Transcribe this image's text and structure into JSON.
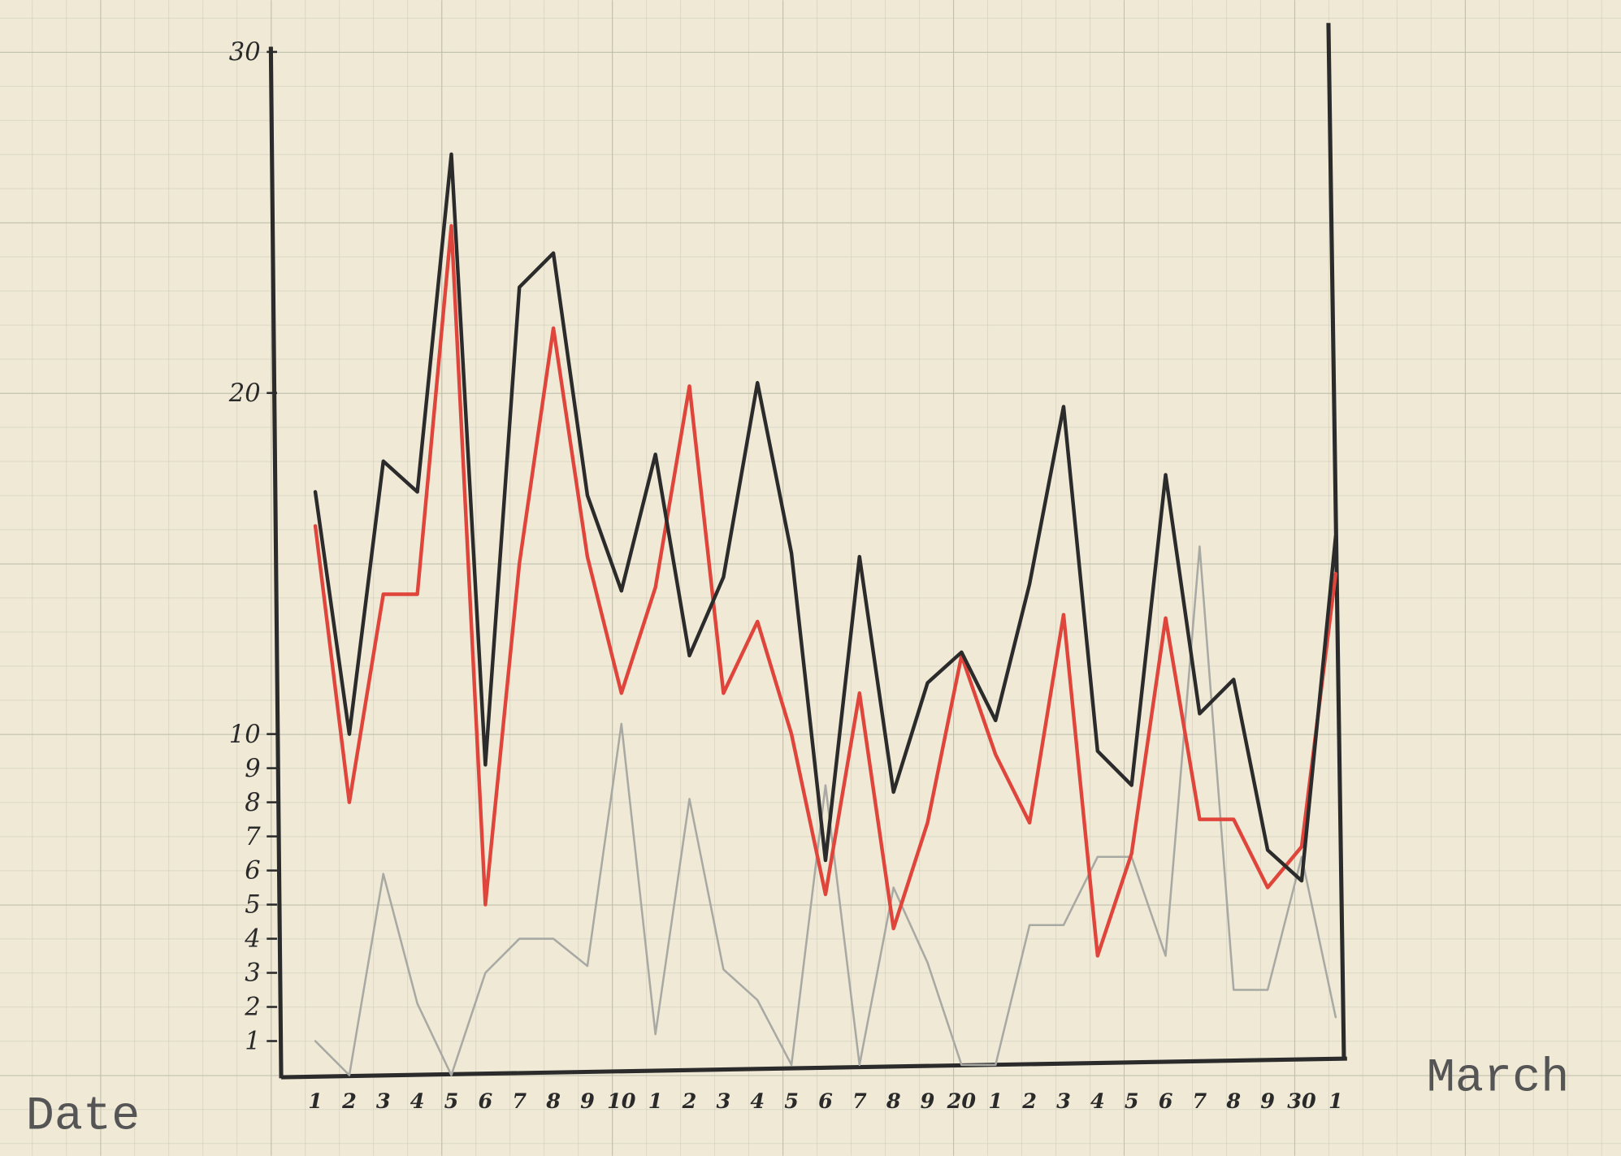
{
  "chart_data": {
    "type": "line",
    "x_label": "Date",
    "x_label_right": "March",
    "categories": [
      "1",
      "2",
      "3",
      "4",
      "5",
      "6",
      "7",
      "8",
      "9",
      "10",
      "1",
      "2",
      "3",
      "4",
      "5",
      "6",
      "7",
      "8",
      "9",
      "20",
      "1",
      "2",
      "3",
      "4",
      "5",
      "6",
      "7",
      "8",
      "9",
      "30",
      "1"
    ],
    "ylim": [
      0,
      30
    ],
    "yticks": [
      1,
      2,
      3,
      4,
      5,
      6,
      7,
      8,
      9,
      10,
      20,
      30
    ],
    "grid": true,
    "series": [
      {
        "color": "#2b2b2b",
        "values": [
          17.1,
          10.0,
          18.0,
          17.1,
          27.0,
          9.1,
          23.1,
          24.1,
          17.0,
          14.2,
          18.2,
          12.3,
          14.6,
          20.3,
          15.3,
          6.3,
          15.2,
          8.3,
          11.5,
          12.4,
          10.4,
          14.4,
          19.6,
          9.5,
          8.5,
          17.6,
          10.6,
          11.6,
          6.6,
          5.7,
          15.8
        ]
      },
      {
        "color": "#e0453c",
        "values": [
          16.1,
          8.0,
          14.1,
          14.1,
          24.9,
          5.0,
          15.0,
          21.9,
          15.2,
          11.2,
          14.3,
          20.2,
          11.2,
          13.3,
          10.0,
          5.3,
          11.2,
          4.3,
          7.4,
          12.3,
          9.4,
          7.4,
          13.5,
          3.5,
          6.5,
          13.4,
          7.5,
          7.5,
          5.5,
          6.7,
          14.7
        ]
      },
      {
        "color": "#a9a9a4",
        "values": [
          1.0,
          0,
          5.9,
          2.1,
          0,
          3.0,
          4.0,
          4.0,
          3.2,
          10.3,
          1.2,
          8.1,
          3.1,
          2.2,
          0.3,
          8.5,
          0.3,
          5.5,
          3.3,
          0.3,
          0.3,
          4.4,
          4.4,
          6.4,
          6.4,
          3.5,
          15.5,
          2.5,
          2.5,
          6.4,
          1.7
        ]
      }
    ]
  }
}
